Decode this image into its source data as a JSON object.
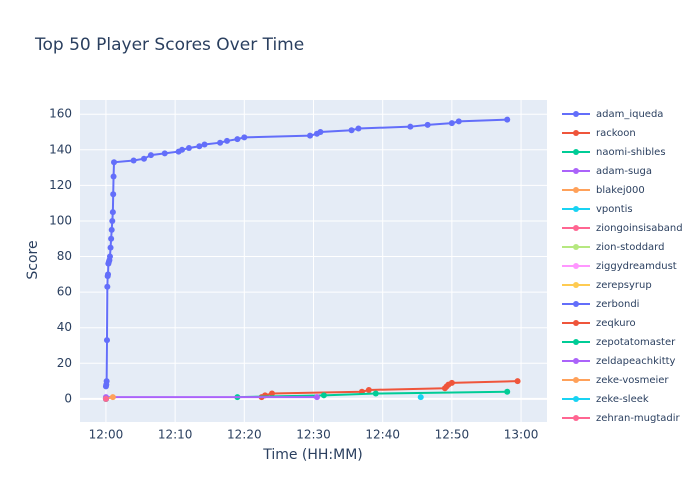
{
  "chart_data": {
    "type": "line",
    "title": "Top 50 Player Scores Over Time",
    "x_label": "Time (HH:MM)",
    "y_label": "Score",
    "xlim": [
      "11:56:15",
      "13:03:45"
    ],
    "xticks": [
      "12:00",
      "12:10",
      "12:20",
      "12:30",
      "12:40",
      "12:50",
      "13:00"
    ],
    "ylim": [
      -13,
      168
    ],
    "yticks": [
      0,
      20,
      40,
      60,
      80,
      100,
      120,
      140,
      160
    ],
    "grid": true,
    "legend": "right",
    "series": [
      {
        "name": "adam_iqueda",
        "color": "#636efa",
        "x": [
          "12:00:00",
          "12:00:03",
          "12:00:06",
          "12:00:09",
          "12:00:12",
          "12:00:15",
          "12:00:18",
          "12:00:21",
          "12:00:25",
          "12:00:30",
          "12:00:35",
          "12:00:40",
          "12:00:45",
          "12:00:50",
          "12:00:55",
          "12:01:00",
          "12:01:03",
          "12:01:06",
          "12:01:10",
          "12:04:00",
          "12:05:30",
          "12:06:30",
          "12:08:30",
          "12:10:30",
          "12:11:00",
          "12:12:00",
          "12:13:30",
          "12:14:15",
          "12:16:30",
          "12:17:30",
          "12:19:00",
          "12:20:00",
          "12:29:30",
          "12:30:30",
          "12:31:00",
          "12:35:30",
          "12:36:30",
          "12:44:00",
          "12:46:30",
          "12:50:00",
          "12:51:00",
          "12:58:00"
        ],
        "values": [
          7,
          8,
          10,
          33,
          63,
          69,
          70,
          76,
          77,
          78,
          80,
          85,
          90,
          95,
          100,
          105,
          115,
          125,
          133,
          134,
          135,
          137,
          138,
          139,
          140,
          141,
          142,
          143,
          144,
          145,
          146,
          147,
          148,
          149,
          150,
          151,
          152,
          153,
          154,
          155,
          156,
          157
        ]
      },
      {
        "name": "rackoon",
        "color": "#EF553B",
        "x": [
          "12:22:30",
          "12:23:00",
          "12:24:00",
          "12:37:00",
          "12:38:00",
          "12:49:00",
          "12:49:15",
          "12:49:30",
          "12:50:00",
          "12:59:30"
        ],
        "values": [
          1,
          2,
          3,
          4,
          5,
          6,
          7,
          8,
          9,
          10
        ]
      },
      {
        "name": "naomi-shibles",
        "color": "#00cc96",
        "x": [
          "12:19:00",
          "12:31:30",
          "12:39:00",
          "12:58:00"
        ],
        "values": [
          1,
          2,
          3,
          4
        ]
      },
      {
        "name": "adam-suga",
        "color": "#ab63fa",
        "x": [
          "12:00:00",
          "12:30:30"
        ],
        "values": [
          1,
          1
        ]
      },
      {
        "name": "blakej000",
        "color": "#FFA15A",
        "x": [
          "12:00:00",
          "12:01:00"
        ],
        "values": [
          0,
          1
        ]
      },
      {
        "name": "vpontis",
        "color": "#19d3f3",
        "x": [
          "12:45:30"
        ],
        "values": [
          1
        ]
      },
      {
        "name": "ziongoinsisaband",
        "color": "#FF6692",
        "x": [
          "12:00:00"
        ],
        "values": [
          0
        ]
      },
      {
        "name": "zion-stoddard",
        "color": "#B6E880",
        "x": [
          "12:00:00"
        ],
        "values": [
          0
        ]
      },
      {
        "name": "ziggydreamdust",
        "color": "#FF97FF",
        "x": [
          "12:00:00"
        ],
        "values": [
          0
        ]
      },
      {
        "name": "zerepsyrup",
        "color": "#FECB52",
        "x": [
          "12:00:00"
        ],
        "values": [
          0
        ]
      },
      {
        "name": "zerbondi",
        "color": "#636efa",
        "x": [
          "12:00:00"
        ],
        "values": [
          0
        ]
      },
      {
        "name": "zeqkuro",
        "color": "#EF553B",
        "x": [
          "12:00:00"
        ],
        "values": [
          0
        ]
      },
      {
        "name": "zepotatomaster",
        "color": "#00cc96",
        "x": [
          "12:00:00"
        ],
        "values": [
          0
        ]
      },
      {
        "name": "zeldapeachkitty",
        "color": "#ab63fa",
        "x": [
          "12:00:00"
        ],
        "values": [
          0
        ]
      },
      {
        "name": "zeke-vosmeier",
        "color": "#FFA15A",
        "x": [
          "12:00:00"
        ],
        "values": [
          0
        ]
      },
      {
        "name": "zeke-sleek",
        "color": "#19d3f3",
        "x": [
          "12:00:00"
        ],
        "values": [
          0
        ]
      },
      {
        "name": "zehran-mugtadir",
        "color": "#FF6692",
        "x": [
          "12:00:00"
        ],
        "values": [
          0
        ]
      }
    ]
  }
}
